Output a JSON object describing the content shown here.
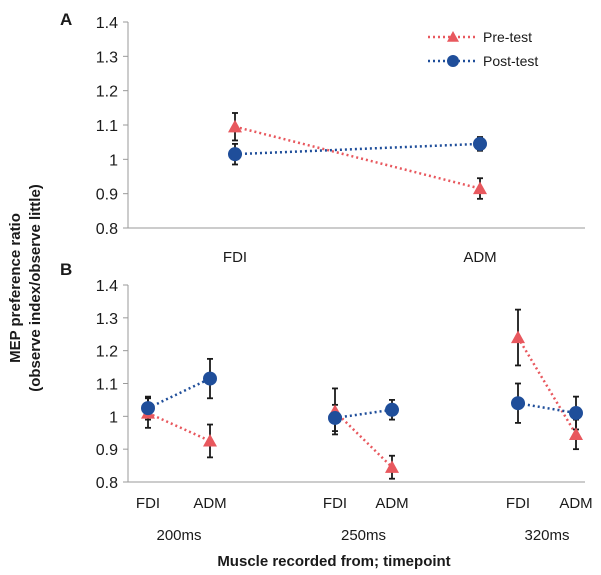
{
  "colors": {
    "pre": "#e8585e",
    "post": "#1f4e9a",
    "axis": "#9a9a9a",
    "error": "#1a1a1a"
  },
  "ylabel_line1": "MEP preference ratio",
  "ylabel_line2": "(observe index/observe little)",
  "xlabel": "Muscle recorded from; timepoint",
  "legend": {
    "pre": "Pre-test",
    "post": "Post-test",
    "placement": "top-right"
  },
  "chart_data": [
    {
      "panel": "A",
      "type": "line",
      "ylim": [
        0.8,
        1.4
      ],
      "yticks": [
        0.8,
        0.9,
        1,
        1.1,
        1.2,
        1.3,
        1.4
      ],
      "ytick_labels": [
        "0.8",
        "0.9",
        "1",
        "1.1",
        "1.2",
        "1.3",
        "1.4"
      ],
      "categories": [
        "FDI",
        "ADM"
      ],
      "series": [
        {
          "name": "Pre-test",
          "marker": "triangle",
          "values": [
            1.095,
            0.915
          ],
          "errors": [
            0.04,
            0.03
          ]
        },
        {
          "name": "Post-test",
          "marker": "circle",
          "values": [
            1.015,
            1.045
          ],
          "errors": [
            0.03,
            0.02
          ]
        }
      ]
    },
    {
      "panel": "B",
      "type": "line",
      "ylim": [
        0.8,
        1.4
      ],
      "yticks": [
        0.8,
        0.9,
        1,
        1.1,
        1.2,
        1.3,
        1.4
      ],
      "ytick_labels": [
        "0.8",
        "0.9",
        "1",
        "1.1",
        "1.2",
        "1.3",
        "1.4"
      ],
      "groups": [
        {
          "timepoint": "200ms",
          "categories": [
            "FDI",
            "ADM"
          ],
          "series": [
            {
              "name": "Pre-test",
              "values": [
                1.01,
                0.925
              ],
              "errors": [
                0.045,
                0.05
              ]
            },
            {
              "name": "Post-test",
              "values": [
                1.025,
                1.115
              ],
              "errors": [
                0.035,
                0.06
              ]
            }
          ]
        },
        {
          "timepoint": "250ms",
          "categories": [
            "FDI",
            "ADM"
          ],
          "series": [
            {
              "name": "Pre-test",
              "values": [
                1.015,
                0.845
              ],
              "errors": [
                0.07,
                0.035
              ]
            },
            {
              "name": "Post-test",
              "values": [
                0.995,
                1.02
              ],
              "errors": [
                0.04,
                0.03
              ]
            }
          ]
        },
        {
          "timepoint": "320ms",
          "categories": [
            "FDI",
            "ADM"
          ],
          "series": [
            {
              "name": "Pre-test",
              "values": [
                1.24,
                0.945
              ],
              "errors": [
                0.085,
                0.045
              ]
            },
            {
              "name": "Post-test",
              "values": [
                1.04,
                1.01
              ],
              "errors": [
                0.06,
                0.05
              ]
            }
          ]
        }
      ]
    }
  ]
}
